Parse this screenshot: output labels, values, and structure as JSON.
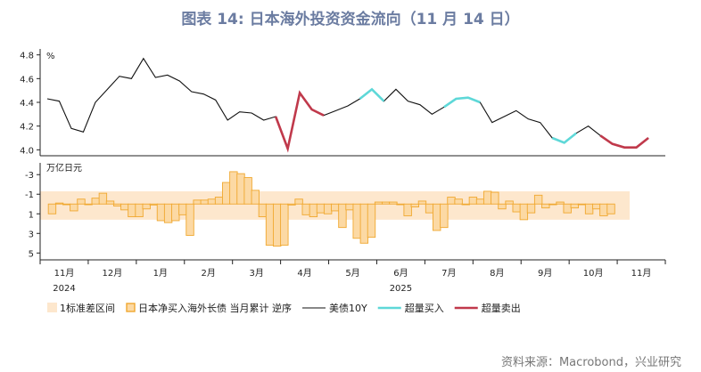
{
  "title": "图表 14: 日本海外投资资金流向（11 月 14 日）",
  "source": "资料来源：Macrobond，兴业研究",
  "chart_data": {
    "type": "line+bar",
    "months": [
      "11月",
      "12月",
      "1月",
      "2月",
      "3月",
      "4月",
      "5月",
      "6月",
      "7月",
      "8月",
      "9月",
      "10月",
      "11月"
    ],
    "years": [
      {
        "label": "2024",
        "month_index": 0
      },
      {
        "label": "2025",
        "month_index": 7
      }
    ],
    "top_panel": {
      "unit": "%",
      "ylim": [
        3.95,
        4.85
      ],
      "yticks": [
        "4.0",
        "4.2",
        "4.4",
        "4.6",
        "4.8"
      ],
      "ytick_values": [
        4.0,
        4.2,
        4.4,
        4.6,
        4.8
      ],
      "series": {
        "name": "美债10Y",
        "x": [
          0.0,
          0.25,
          0.5,
          0.75,
          1.0,
          1.25,
          1.5,
          1.75,
          2.0,
          2.25,
          2.5,
          2.75,
          3.0,
          3.25,
          3.5,
          3.75,
          4.0,
          4.25,
          4.5,
          4.75,
          5.0,
          5.25,
          5.5,
          5.75,
          6.0,
          6.25,
          6.5,
          6.75,
          7.0,
          7.25,
          7.5,
          7.75,
          8.0,
          8.25,
          8.5,
          8.75,
          9.0,
          9.25,
          9.5,
          9.75,
          10.0,
          10.25,
          10.5,
          10.75,
          11.0,
          11.25,
          11.5,
          11.75,
          12.0,
          12.25,
          12.5
        ],
        "y": [
          4.43,
          4.41,
          4.18,
          4.15,
          4.4,
          4.51,
          4.62,
          4.6,
          4.77,
          4.61,
          4.63,
          4.58,
          4.49,
          4.47,
          4.42,
          4.25,
          4.32,
          4.31,
          4.25,
          4.28,
          4.01,
          4.48,
          4.34,
          4.29,
          4.33,
          4.37,
          4.43,
          4.51,
          4.41,
          4.51,
          4.41,
          4.38,
          4.3,
          4.36,
          4.43,
          4.44,
          4.4,
          4.23,
          4.28,
          4.33,
          4.26,
          4.23,
          4.1,
          4.06,
          4.14,
          4.2,
          4.12,
          4.05,
          4.02,
          4.02,
          4.1
        ]
      },
      "highlights": [
        {
          "name": "超量买入",
          "color": "#5ed8d8",
          "segments": [
            [
              26,
              28
            ],
            [
              33,
              36
            ],
            [
              42,
              44
            ]
          ]
        },
        {
          "name": "超量卖出",
          "color": "#c0394b",
          "segments": [
            [
              19,
              23
            ],
            [
              46,
              51
            ]
          ]
        }
      ]
    },
    "bottom_panel": {
      "unit": "万亿日元",
      "ylim": [
        -4.2,
        5.7
      ],
      "yticks": [
        "-3",
        "-1",
        "1",
        "3",
        "5"
      ],
      "ytick_values": [
        -3,
        -1,
        1,
        3,
        5
      ],
      "inverted": true,
      "band": {
        "label": "1标准差区间",
        "low": -1.3,
        "high": 1.6,
        "color": "#fde7cd"
      },
      "bars": {
        "name": "日本净买入海外长债 当月累计 逆序",
        "color": "#fcd9a4",
        "edge": "#f0a830",
        "x": [
          0.2,
          0.5,
          0.8,
          1.1,
          1.4,
          1.7,
          2.0,
          2.3,
          2.6,
          2.9,
          3.2,
          3.5,
          3.8,
          4.1,
          4.4,
          4.7,
          5.0,
          5.3,
          5.6,
          5.9,
          6.2,
          6.5,
          6.8,
          7.1,
          7.4,
          7.7,
          8.0,
          8.3,
          8.6,
          8.9,
          9.2,
          9.5,
          9.8,
          10.1,
          10.4,
          10.7,
          11.0,
          11.3,
          11.6,
          11.9,
          12.2,
          12.5,
          12.8,
          13.1,
          13.4,
          13.7,
          14.0,
          14.3,
          14.6,
          14.9,
          15.2,
          15.5,
          15.8,
          16.1,
          16.4,
          16.7,
          17.0,
          17.3,
          17.6,
          17.9,
          18.2,
          18.5,
          18.8,
          19.1,
          19.4,
          19.7,
          20.0,
          20.3,
          20.6,
          20.9,
          21.2,
          21.5,
          21.8,
          22.1,
          22.4,
          22.7,
          23.0,
          23.3
        ],
        "y": [
          1.0,
          -0.1,
          0.0,
          0.7,
          -0.5,
          0.0,
          -0.6,
          -1.1,
          -0.3,
          0.2,
          0.6,
          1.3,
          1.3,
          0.5,
          0.1,
          1.7,
          1.9,
          1.7,
          1.1,
          3.2,
          -0.4,
          -0.4,
          -0.5,
          -0.7,
          -2.2,
          -3.3,
          -3.1,
          -2.7,
          -1.4,
          1.3,
          4.2,
          4.3,
          4.2,
          0.1,
          -0.5,
          1.1,
          1.3,
          0.9,
          1.0,
          0.7,
          2.4,
          0.6,
          3.5,
          4.0,
          3.4,
          -0.2,
          -0.2,
          -0.2,
          0.0,
          1.2,
          0.3,
          -0.3,
          0.9,
          2.7,
          2.4,
          -0.7,
          -0.5,
          0.0,
          -0.7,
          -0.5,
          -1.3,
          -1.2,
          0.5,
          -0.3,
          0.8,
          1.6,
          0.9,
          -0.9,
          0.4,
          0.0,
          -0.2,
          0.9,
          0.4,
          0.0,
          1.0,
          0.5,
          1.2,
          1.0
        ]
      }
    },
    "legend": [
      {
        "type": "band",
        "label": "1标准差区间"
      },
      {
        "type": "bar",
        "label": "日本净买入海外长债 当月累计 逆序"
      },
      {
        "type": "line",
        "label": "美债10Y"
      },
      {
        "type": "line-cyan",
        "label": "超量买入"
      },
      {
        "type": "line-red",
        "label": "超量卖出"
      }
    ],
    "legend_position": "bottom"
  }
}
